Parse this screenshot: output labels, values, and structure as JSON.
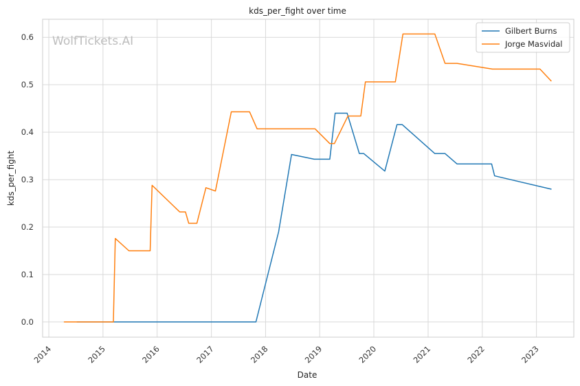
{
  "watermark": "WolfTickets.AI",
  "chart_data": {
    "type": "line",
    "title": "kds_per_fight over time",
    "xlabel": "Date",
    "ylabel": "kds_per_fight",
    "xlim": [
      "2013-11-20",
      "2023-09-10"
    ],
    "ylim": [
      -0.032,
      0.638
    ],
    "x_ticks": [
      "2014-01-01",
      "2015-01-01",
      "2016-01-01",
      "2017-01-01",
      "2018-01-01",
      "2019-01-01",
      "2020-01-01",
      "2021-01-01",
      "2022-01-01",
      "2023-01-01"
    ],
    "x_tick_labels": [
      "2014",
      "2015",
      "2016",
      "2017",
      "2018",
      "2019",
      "2020",
      "2021",
      "2022",
      "2023"
    ],
    "y_ticks": [
      0.0,
      0.1,
      0.2,
      0.3,
      0.4,
      0.5,
      0.6
    ],
    "y_tick_labels": [
      "0.0",
      "0.1",
      "0.2",
      "0.3",
      "0.4",
      "0.5",
      "0.6"
    ],
    "grid": true,
    "legend_position": "top-right",
    "series": [
      {
        "name": "Gilbert Burns",
        "color": "#1f77b4",
        "points": [
          [
            "2014-07-10",
            0.0
          ],
          [
            "2015-03-20",
            0.0
          ],
          [
            "2016-06-01",
            0.0
          ],
          [
            "2017-10-28",
            0.0
          ],
          [
            "2018-03-30",
            0.19
          ],
          [
            "2018-06-25",
            0.353
          ],
          [
            "2018-11-25",
            0.343
          ],
          [
            "2019-03-10",
            0.343
          ],
          [
            "2019-04-15",
            0.44
          ],
          [
            "2019-07-05",
            0.44
          ],
          [
            "2019-09-25",
            0.355
          ],
          [
            "2019-10-25",
            0.355
          ],
          [
            "2020-03-15",
            0.318
          ],
          [
            "2020-06-05",
            0.416
          ],
          [
            "2020-07-10",
            0.416
          ],
          [
            "2021-02-15",
            0.355
          ],
          [
            "2021-04-25",
            0.355
          ],
          [
            "2021-07-15",
            0.333
          ],
          [
            "2022-03-05",
            0.333
          ],
          [
            "2022-03-25",
            0.308
          ],
          [
            "2023-04-10",
            0.28
          ]
        ]
      },
      {
        "name": "Jorge Masvidal",
        "color": "#ff7f0e",
        "points": [
          [
            "2014-04-15",
            0.0
          ],
          [
            "2015-03-12",
            0.0
          ],
          [
            "2015-03-25",
            0.176
          ],
          [
            "2015-06-25",
            0.15
          ],
          [
            "2015-11-15",
            0.15
          ],
          [
            "2015-11-28",
            0.288
          ],
          [
            "2016-06-01",
            0.232
          ],
          [
            "2016-07-10",
            0.232
          ],
          [
            "2016-08-01",
            0.208
          ],
          [
            "2016-09-25",
            0.208
          ],
          [
            "2016-11-25",
            0.283
          ],
          [
            "2017-01-28",
            0.276
          ],
          [
            "2017-05-15",
            0.443
          ],
          [
            "2017-09-15",
            0.443
          ],
          [
            "2017-11-05",
            0.407
          ],
          [
            "2018-12-01",
            0.407
          ],
          [
            "2019-03-10",
            0.376
          ],
          [
            "2019-04-10",
            0.376
          ],
          [
            "2019-07-10",
            0.434
          ],
          [
            "2019-10-05",
            0.434
          ],
          [
            "2019-11-05",
            0.506
          ],
          [
            "2020-05-25",
            0.506
          ],
          [
            "2020-07-15",
            0.607
          ],
          [
            "2021-02-15",
            0.607
          ],
          [
            "2021-04-25",
            0.545
          ],
          [
            "2021-07-15",
            0.545
          ],
          [
            "2022-03-10",
            0.533
          ],
          [
            "2023-01-25",
            0.533
          ],
          [
            "2023-04-10",
            0.508
          ]
        ]
      }
    ]
  }
}
